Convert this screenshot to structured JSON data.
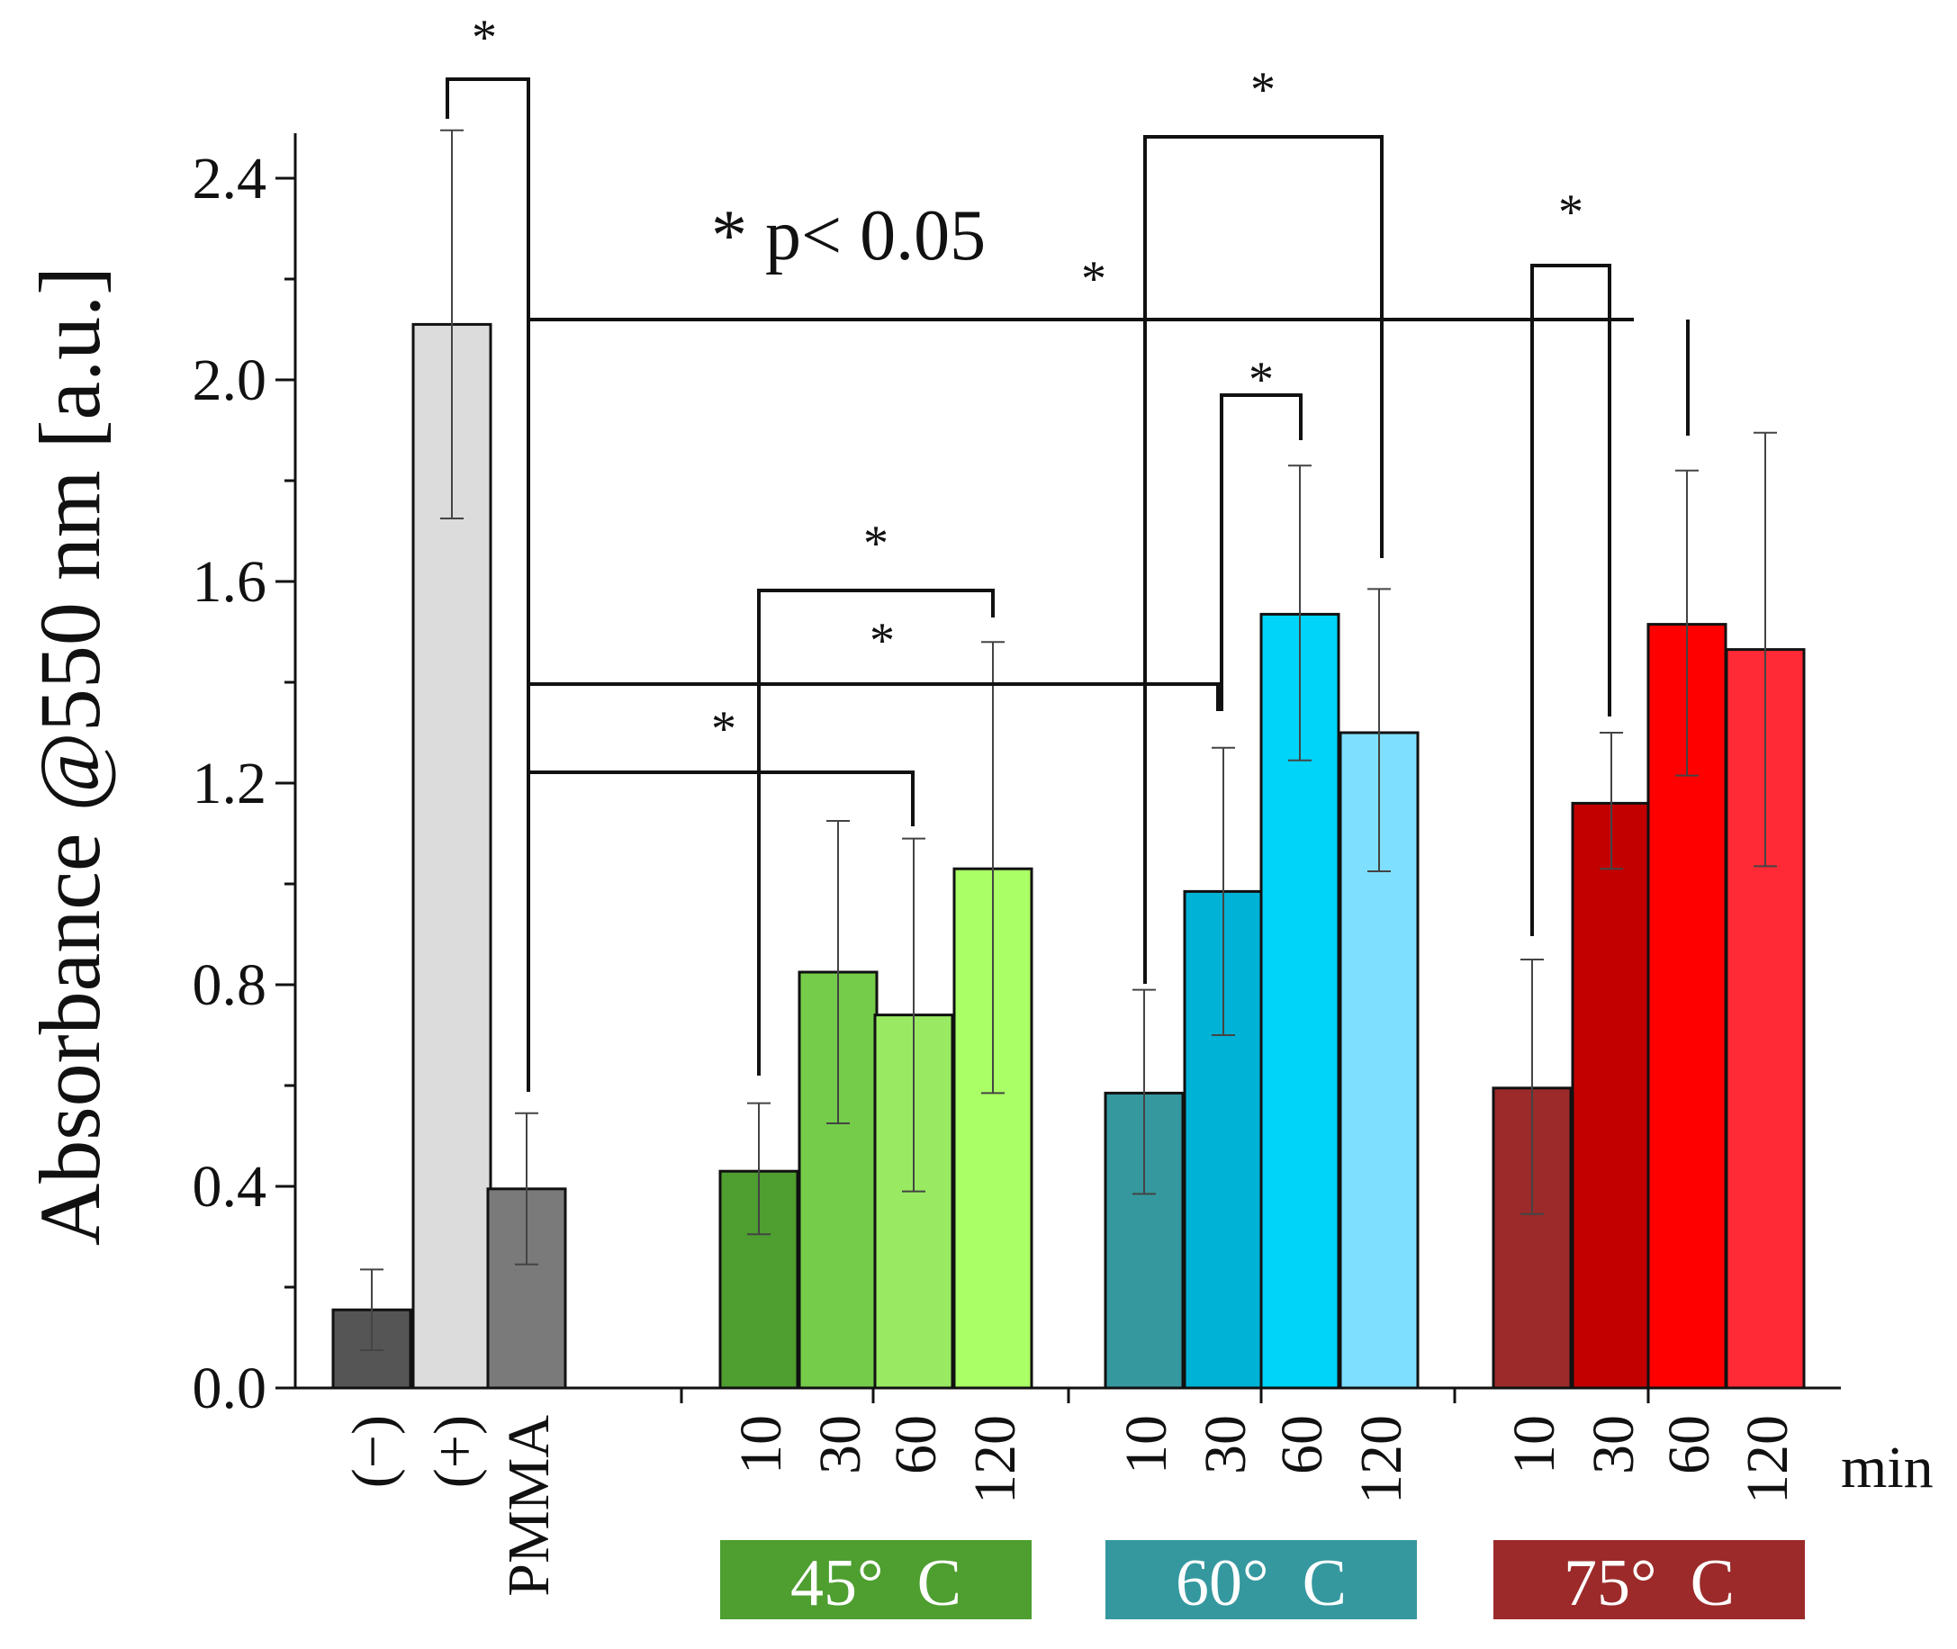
{
  "chart_data": {
    "type": "bar",
    "ylabel": "Absorbance @550 nm [a.u.]",
    "ylim": [
      0,
      2.5
    ],
    "yticks": [
      0.0,
      0.4,
      0.8,
      1.2,
      1.6,
      2.0,
      2.4
    ],
    "ytick_labels": [
      "0.0",
      "0.4",
      "0.8",
      "1.2",
      "1.6",
      "2.0",
      "2.4"
    ],
    "annotation": "* p< 0.05",
    "star": "*",
    "unit_label": "min",
    "controls": [
      {
        "label": "(−)",
        "value": 0.155,
        "err_low": 0.075,
        "err_high": 0.235,
        "color": "#555555"
      },
      {
        "label": "(+)",
        "value": 2.11,
        "err_low": 1.725,
        "err_high": 2.495,
        "color": "#dcdcdc"
      },
      {
        "label": "PMMA",
        "value": 0.395,
        "err_low": 0.245,
        "err_high": 0.545,
        "color": "#7a7a7a"
      }
    ],
    "groups": [
      {
        "label": "45°  C",
        "color": "#4e9e30",
        "bars": [
          {
            "label": "10",
            "value": 0.43,
            "err_low": 0.305,
            "err_high": 0.565,
            "color": "#4e9e30"
          },
          {
            "label": "30",
            "value": 0.825,
            "err_low": 0.525,
            "err_high": 1.125,
            "color": "#74cc4a"
          },
          {
            "label": "60",
            "value": 0.74,
            "err_low": 0.39,
            "err_high": 1.09,
            "color": "#99ea62"
          },
          {
            "label": "120",
            "value": 1.03,
            "err_low": 0.585,
            "err_high": 1.48,
            "color": "#aaff66"
          }
        ]
      },
      {
        "label": "60°  C",
        "color": "#35989f",
        "bars": [
          {
            "label": "10",
            "value": 0.585,
            "err_low": 0.385,
            "err_high": 0.79,
            "color": "#35989f"
          },
          {
            "label": "30",
            "value": 0.985,
            "err_low": 0.7,
            "err_high": 1.27,
            "color": "#00b2d6"
          },
          {
            "label": "60",
            "value": 1.535,
            "err_low": 1.245,
            "err_high": 1.83,
            "color": "#00d4f8"
          },
          {
            "label": "120",
            "value": 1.3,
            "err_low": 1.025,
            "err_high": 1.585,
            "color": "#7fdfff"
          }
        ]
      },
      {
        "label": "75°  C",
        "color": "#9c2a2a",
        "bars": [
          {
            "label": "10",
            "value": 0.595,
            "err_low": 0.345,
            "err_high": 0.85,
            "color": "#9c2a2a"
          },
          {
            "label": "30",
            "value": 1.16,
            "err_low": 1.03,
            "err_high": 1.3,
            "color": "#c20000"
          },
          {
            "label": "60",
            "value": 1.515,
            "err_low": 1.215,
            "err_high": 1.82,
            "color": "#ff0000"
          },
          {
            "label": "120",
            "value": 1.465,
            "err_low": 1.035,
            "err_high": 1.895,
            "color": "#ff2a35"
          }
        ]
      }
    ]
  }
}
